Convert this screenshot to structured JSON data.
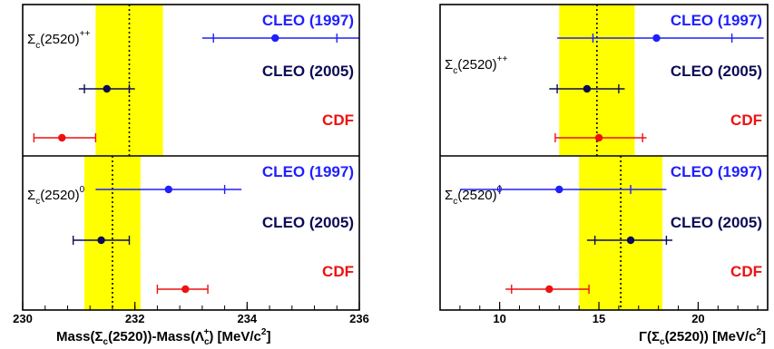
{
  "colors": {
    "band": "#ffff00",
    "CLEO (1997)": "#1f1fff",
    "CLEO (2005)": "#0b0b55",
    "CDF": "#ee1111"
  },
  "chart_data": [
    {
      "type": "scatter",
      "panel": "mass",
      "xlim": [
        230,
        236
      ],
      "x_ticks": [
        230,
        232,
        234,
        236
      ],
      "xlabel": {
        "pre": "Mass(Σ",
        "sub1": "c",
        "mid": "(2520))-Mass(Λ",
        "sub2": "c",
        "sup2": "+",
        "post": ") [MeV/c",
        "sup3": "2",
        "tail": "]"
      },
      "rows": [
        {
          "state_label": {
            "base": "Σ",
            "sub": "c",
            "rest": "(2520)",
            "sup": "++"
          },
          "band": {
            "center": 231.9,
            "low": 231.3,
            "high": 232.5
          },
          "measurements": [
            {
              "experiment": "CLEO (1997)",
              "value": 234.5,
              "stat_low": 233.8,
              "stat_high": 235.2,
              "total_low": 233.2,
              "total_high": 236.0,
              "ticks": [
                233.4,
                235.6
              ]
            },
            {
              "experiment": "CLEO (2005)",
              "value": 231.5,
              "stat_low": 231.1,
              "stat_high": 231.9,
              "total_low": 231.0,
              "total_high": 232.0,
              "ticks": [
                231.1,
                231.9
              ]
            },
            {
              "experiment": "CDF",
              "value": 230.7,
              "stat_low": 230.2,
              "stat_high": 231.3,
              "total_low": 230.2,
              "total_high": 231.3,
              "ticks": [
                230.2,
                231.3
              ]
            }
          ]
        },
        {
          "state_label": {
            "base": "Σ",
            "sub": "c",
            "rest": "(2520)",
            "sup": "0"
          },
          "band": {
            "center": 231.6,
            "low": 231.1,
            "high": 232.1
          },
          "measurements": [
            {
              "experiment": "CLEO (1997)",
              "value": 232.6,
              "stat_low": 231.6,
              "stat_high": 233.6,
              "total_low": 231.3,
              "total_high": 233.9,
              "ticks": [
                233.6
              ]
            },
            {
              "experiment": "CLEO (2005)",
              "value": 231.4,
              "stat_low": 230.9,
              "stat_high": 231.9,
              "total_low": 230.9,
              "total_high": 231.9,
              "ticks": [
                230.9,
                231.9
              ]
            },
            {
              "experiment": "CDF",
              "value": 232.9,
              "stat_low": 232.4,
              "stat_high": 233.3,
              "total_low": 232.4,
              "total_high": 233.3,
              "ticks": [
                232.4,
                233.3
              ]
            }
          ]
        }
      ]
    },
    {
      "type": "scatter",
      "panel": "width",
      "xlim": [
        7,
        23.5
      ],
      "x_ticks": [
        10,
        15,
        20
      ],
      "xlabel": {
        "pre": "Γ(Σ",
        "sub1": "c",
        "mid": "(2520)) [MeV/c",
        "sup3": "2",
        "tail": "]"
      },
      "rows": [
        {
          "state_label": {
            "base": "Σ",
            "sub": "c",
            "rest": "(2520)",
            "sup": "++"
          },
          "band": {
            "center": 14.9,
            "low": 13.0,
            "high": 16.8
          },
          "measurements": [
            {
              "experiment": "CLEO (1997)",
              "value": 17.9,
              "stat_low": 14.7,
              "stat_high": 21.7,
              "total_low": 12.9,
              "total_high": 23.3,
              "ticks": [
                14.7,
                21.7
              ]
            },
            {
              "experiment": "CLEO (2005)",
              "value": 14.4,
              "stat_low": 12.9,
              "stat_high": 16.0,
              "total_low": 12.5,
              "total_high": 16.3,
              "ticks": [
                12.9,
                16.0
              ]
            },
            {
              "experiment": "CDF",
              "value": 15.0,
              "stat_low": 12.8,
              "stat_high": 17.2,
              "total_low": 12.8,
              "total_high": 17.4,
              "ticks": [
                12.8,
                17.2
              ]
            }
          ]
        },
        {
          "state_label": {
            "base": "Σ",
            "sub": "c",
            "rest": "(2520)",
            "sup": "0"
          },
          "band": {
            "center": 16.1,
            "low": 14.0,
            "high": 18.2
          },
          "measurements": [
            {
              "experiment": "CLEO (1997)",
              "value": 13.0,
              "stat_low": 10.0,
              "stat_high": 16.6,
              "total_low": 8.0,
              "total_high": 18.4,
              "ticks": [
                10.0,
                16.6
              ]
            },
            {
              "experiment": "CLEO (2005)",
              "value": 16.6,
              "stat_low": 14.8,
              "stat_high": 18.4,
              "total_low": 14.4,
              "total_high": 18.7,
              "ticks": [
                14.8,
                18.4
              ]
            },
            {
              "experiment": "CDF",
              "value": 12.5,
              "stat_low": 10.6,
              "stat_high": 14.5,
              "total_low": 10.3,
              "total_high": 14.5,
              "ticks": [
                10.6,
                14.5
              ]
            }
          ]
        }
      ]
    }
  ]
}
